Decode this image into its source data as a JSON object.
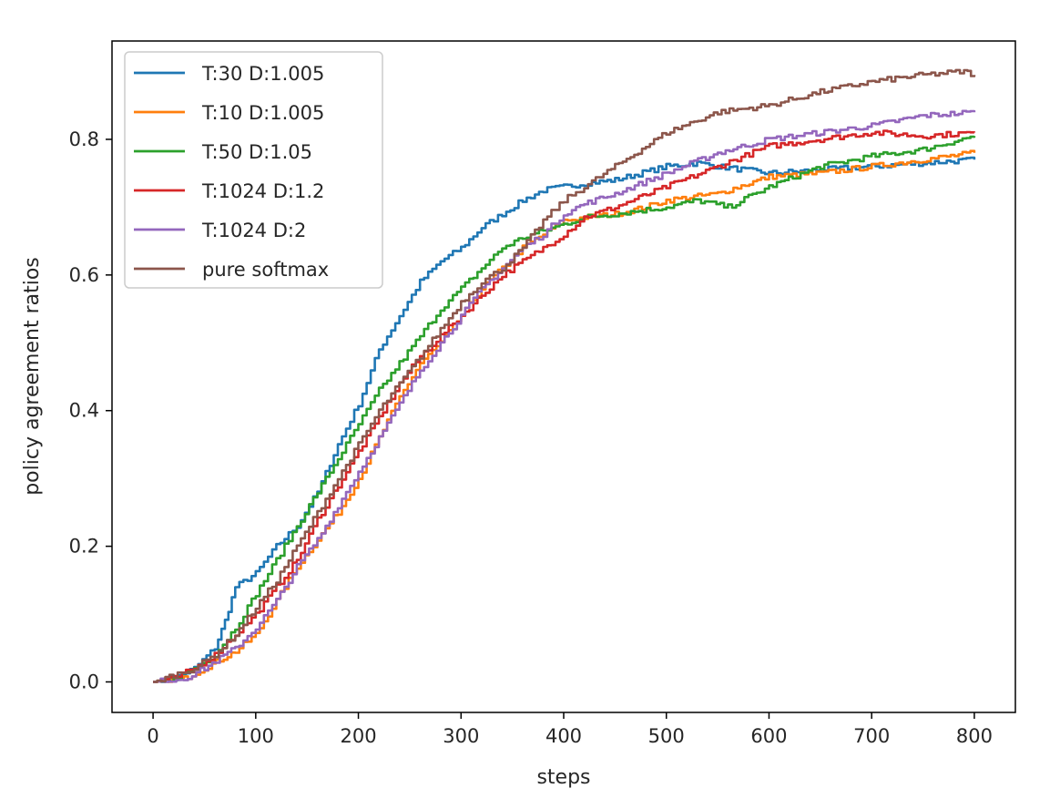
{
  "chart_data": {
    "type": "line",
    "xlabel": "steps",
    "ylabel": "policy agreement ratios",
    "xlim": [
      -40,
      840
    ],
    "ylim": [
      -0.045,
      0.945
    ],
    "xticks": [
      0,
      100,
      200,
      300,
      400,
      500,
      600,
      700,
      800
    ],
    "yticks": [
      0.0,
      0.2,
      0.4,
      0.6,
      0.8
    ],
    "ytick_labels": [
      "0.0",
      "0.2",
      "0.4",
      "0.6",
      "0.8"
    ],
    "grid": false,
    "legend_position": "upper-left",
    "series": [
      {
        "name": "T:30 D:1.005",
        "color": "#1f77b4",
        "x": [
          0,
          20,
          40,
          60,
          70,
          80,
          100,
          120,
          140,
          160,
          180,
          200,
          220,
          240,
          260,
          280,
          300,
          320,
          340,
          360,
          380,
          400,
          420,
          450,
          500,
          530,
          550,
          600,
          650,
          700,
          750,
          800
        ],
        "y": [
          0.0,
          0.005,
          0.02,
          0.05,
          0.09,
          0.14,
          0.16,
          0.2,
          0.23,
          0.28,
          0.35,
          0.41,
          0.49,
          0.54,
          0.59,
          0.62,
          0.64,
          0.67,
          0.69,
          0.71,
          0.725,
          0.73,
          0.735,
          0.74,
          0.76,
          0.765,
          0.76,
          0.75,
          0.755,
          0.76,
          0.765,
          0.77
        ]
      },
      {
        "name": "T:10 D:1.005",
        "color": "#ff7f0e",
        "x": [
          0,
          30,
          50,
          80,
          100,
          120,
          140,
          160,
          180,
          200,
          220,
          240,
          260,
          280,
          300,
          320,
          340,
          360,
          380,
          400,
          420,
          450,
          480,
          500,
          550,
          600,
          650,
          700,
          750,
          800
        ],
        "y": [
          0.0,
          0.005,
          0.02,
          0.045,
          0.07,
          0.12,
          0.17,
          0.21,
          0.25,
          0.3,
          0.36,
          0.42,
          0.47,
          0.5,
          0.54,
          0.58,
          0.61,
          0.64,
          0.66,
          0.68,
          0.685,
          0.69,
          0.7,
          0.71,
          0.72,
          0.745,
          0.75,
          0.76,
          0.77,
          0.78
        ]
      },
      {
        "name": "T:50 D:1.05",
        "color": "#2ca02c",
        "x": [
          0,
          20,
          40,
          60,
          80,
          100,
          120,
          140,
          160,
          180,
          200,
          220,
          240,
          260,
          280,
          300,
          320,
          340,
          360,
          380,
          400,
          420,
          450,
          500,
          530,
          560,
          600,
          650,
          700,
          750,
          800
        ],
        "y": [
          0.0,
          0.005,
          0.02,
          0.04,
          0.08,
          0.13,
          0.18,
          0.23,
          0.28,
          0.33,
          0.38,
          0.43,
          0.47,
          0.51,
          0.55,
          0.58,
          0.61,
          0.64,
          0.655,
          0.665,
          0.675,
          0.685,
          0.69,
          0.7,
          0.71,
          0.7,
          0.73,
          0.76,
          0.775,
          0.785,
          0.805
        ]
      },
      {
        "name": "T:1024 D:1.2",
        "color": "#d62728",
        "x": [
          0,
          20,
          40,
          60,
          80,
          100,
          120,
          140,
          160,
          180,
          200,
          220,
          240,
          260,
          280,
          300,
          320,
          340,
          360,
          380,
          400,
          420,
          450,
          500,
          550,
          600,
          650,
          700,
          750,
          800
        ],
        "y": [
          0.0,
          0.005,
          0.02,
          0.04,
          0.07,
          0.1,
          0.14,
          0.18,
          0.24,
          0.29,
          0.34,
          0.39,
          0.44,
          0.48,
          0.51,
          0.54,
          0.57,
          0.6,
          0.62,
          0.64,
          0.66,
          0.685,
          0.7,
          0.73,
          0.76,
          0.79,
          0.8,
          0.81,
          0.805,
          0.81
        ]
      },
      {
        "name": "T:1024 D:2",
        "color": "#9467bd",
        "x": [
          0,
          30,
          50,
          80,
          100,
          120,
          140,
          160,
          180,
          200,
          220,
          240,
          260,
          280,
          300,
          320,
          340,
          360,
          380,
          400,
          420,
          450,
          500,
          550,
          600,
          650,
          700,
          750,
          800
        ],
        "y": [
          0.0,
          0.005,
          0.02,
          0.05,
          0.08,
          0.12,
          0.17,
          0.21,
          0.26,
          0.31,
          0.36,
          0.41,
          0.46,
          0.5,
          0.54,
          0.58,
          0.61,
          0.64,
          0.66,
          0.69,
          0.705,
          0.72,
          0.75,
          0.78,
          0.8,
          0.81,
          0.82,
          0.835,
          0.84
        ]
      },
      {
        "name": "pure softmax",
        "color": "#8c564b",
        "x": [
          0,
          20,
          40,
          60,
          80,
          100,
          120,
          140,
          160,
          180,
          200,
          220,
          240,
          260,
          280,
          300,
          320,
          340,
          360,
          380,
          400,
          420,
          450,
          480,
          500,
          550,
          600,
          650,
          700,
          750,
          790,
          800
        ],
        "y": [
          0.0,
          0.01,
          0.02,
          0.04,
          0.07,
          0.11,
          0.15,
          0.2,
          0.25,
          0.3,
          0.35,
          0.4,
          0.44,
          0.48,
          0.52,
          0.56,
          0.59,
          0.61,
          0.64,
          0.68,
          0.71,
          0.73,
          0.76,
          0.79,
          0.81,
          0.84,
          0.85,
          0.87,
          0.885,
          0.895,
          0.9,
          0.895
        ]
      }
    ]
  }
}
